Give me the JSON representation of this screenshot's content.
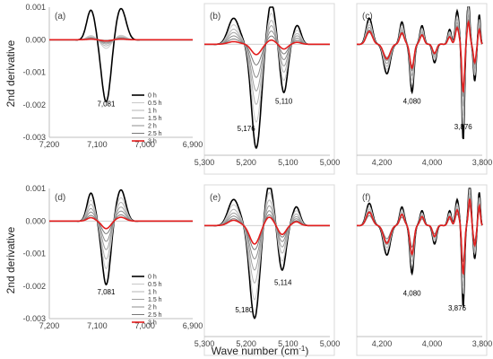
{
  "figure": {
    "ylabel": "2nd derivative",
    "xlabel_main": "Wave number (cm",
    "xlabel_sup": "-1",
    "xlabel_close": ")"
  },
  "legend_labels": [
    "0 h",
    "0.5 h",
    "1 h",
    "1.5 h",
    "2 h",
    "2.5 h",
    "3 h"
  ],
  "colors": {
    "h0": "#000000",
    "h05": "#c8c8c8",
    "h1": "#b4b4b4",
    "h15": "#a0a0a0",
    "h2": "#8c8c8c",
    "h25": "#787878",
    "h3": "#e21e1e",
    "frame": "#d9d9d9"
  },
  "chart_data": [
    {
      "panel": "(a)",
      "type": "line",
      "xlim": [
        7200,
        6900
      ],
      "ylim": [
        -0.003,
        0.001
      ],
      "xticks": [
        "7,200",
        "7,100",
        "7,000",
        "6,900"
      ],
      "yticks": [
        "0.001",
        "0.000",
        "-0.001",
        "-0.002",
        "-0.003"
      ],
      "annotations": [
        {
          "text": "7,081",
          "x": 7081,
          "y": -0.00205
        }
      ],
      "peaks": [
        {
          "x": 7113,
          "a": 0.0009,
          "w": 10
        },
        {
          "x": 7081,
          "a": -0.0019,
          "w": 11
        },
        {
          "x": 7050,
          "a": 0.00095,
          "w": 12
        }
      ],
      "series": [
        {
          "name": "0 h",
          "scale": 1.0
        },
        {
          "name": "0.5 h",
          "scale": 0.14
        },
        {
          "name": "1 h",
          "scale": 0.1
        },
        {
          "name": "1.5 h",
          "scale": 0.07
        },
        {
          "name": "2 h",
          "scale": 0.05
        },
        {
          "name": "2.5 h",
          "scale": 0.03
        },
        {
          "name": "3 h",
          "scale": 0.02
        }
      ]
    },
    {
      "panel": "(b)",
      "type": "line",
      "xlim": [
        5300,
        5000
      ],
      "ylim": [
        -0.003,
        0.001
      ],
      "xticks": [
        "5,300",
        "5,200",
        "5,100",
        "5,000"
      ],
      "annotations": [
        {
          "text": "5,176",
          "x": 5200,
          "y": -0.00235
        },
        {
          "text": "5,110",
          "x": 5110,
          "y": -0.0016
        }
      ],
      "peaks": [
        {
          "x": 5230,
          "a": 0.0007,
          "w": 15
        },
        {
          "x": 5176,
          "a": -0.0028,
          "w": 13
        },
        {
          "x": 5140,
          "a": 0.0011,
          "w": 11
        },
        {
          "x": 5110,
          "a": -0.0013,
          "w": 10
        },
        {
          "x": 5078,
          "a": 0.0005,
          "w": 10
        }
      ],
      "series": [
        {
          "name": "0 h",
          "scale": 1.0
        },
        {
          "name": "0.5 h",
          "scale": 0.75
        },
        {
          "name": "1 h",
          "scale": 0.58
        },
        {
          "name": "1.5 h",
          "scale": 0.45
        },
        {
          "name": "2 h",
          "scale": 0.32
        },
        {
          "name": "2.5 h",
          "scale": 0.2
        },
        {
          "name": "3 h",
          "scale": 0.1
        }
      ]
    },
    {
      "panel": "(c)",
      "type": "line",
      "xlim": [
        4300,
        3800
      ],
      "ylim": [
        -0.003,
        0.001
      ],
      "xticks": [
        "4,200",
        "4,000",
        "3,800"
      ],
      "annotations": [
        {
          "text": "4,080",
          "x": 4080,
          "y": -0.0016
        },
        {
          "text": "3,876",
          "x": 3876,
          "y": -0.0023
        }
      ],
      "peaks": [
        {
          "x": 4250,
          "a": 0.0007,
          "w": 14
        },
        {
          "x": 4180,
          "a": -0.0008,
          "w": 15
        },
        {
          "x": 4120,
          "a": 0.0006,
          "w": 10
        },
        {
          "x": 4080,
          "a": -0.0013,
          "w": 9
        },
        {
          "x": 4040,
          "a": 0.0005,
          "w": 9
        },
        {
          "x": 3990,
          "a": -0.0005,
          "w": 9
        },
        {
          "x": 3930,
          "a": 0.0004,
          "w": 8
        },
        {
          "x": 3900,
          "a": 0.0009,
          "w": 8
        },
        {
          "x": 3876,
          "a": -0.0026,
          "w": 6
        },
        {
          "x": 3855,
          "a": 0.0012,
          "w": 6
        },
        {
          "x": 3830,
          "a": -0.001,
          "w": 6
        },
        {
          "x": 3812,
          "a": 0.0008,
          "w": 5
        }
      ],
      "series": [
        {
          "name": "0 h",
          "scale": 1.0
        },
        {
          "name": "0.5 h",
          "scale": 0.85
        },
        {
          "name": "1 h",
          "scale": 0.75
        },
        {
          "name": "1.5 h",
          "scale": 0.65
        },
        {
          "name": "2 h",
          "scale": 0.55
        },
        {
          "name": "2.5 h",
          "scale": 0.45
        },
        {
          "name": "3 h",
          "scale": 0.5
        }
      ]
    },
    {
      "panel": "(d)",
      "type": "line",
      "xlim": [
        7200,
        6900
      ],
      "ylim": [
        -0.003,
        0.001
      ],
      "xticks": [
        "7,200",
        "7,100",
        "7,000",
        "6,900"
      ],
      "yticks": [
        "0.001",
        "0.000",
        "-0.001",
        "-0.002",
        "-0.003"
      ],
      "annotations": [
        {
          "text": "7,081",
          "x": 7081,
          "y": -0.00225
        }
      ],
      "peaks": [
        {
          "x": 7113,
          "a": 0.00085,
          "w": 9
        },
        {
          "x": 7081,
          "a": -0.00195,
          "w": 10
        },
        {
          "x": 7050,
          "a": 0.00095,
          "w": 11
        }
      ],
      "series": [
        {
          "name": "0 h",
          "scale": 1.0
        },
        {
          "name": "0.5 h",
          "scale": 0.75
        },
        {
          "name": "1 h",
          "scale": 0.6
        },
        {
          "name": "1.5 h",
          "scale": 0.45
        },
        {
          "name": "2 h",
          "scale": 0.32
        },
        {
          "name": "2.5 h",
          "scale": 0.2
        },
        {
          "name": "3 h",
          "scale": 0.12
        }
      ]
    },
    {
      "panel": "(e)",
      "type": "line",
      "xlim": [
        5300,
        5000
      ],
      "ylim": [
        -0.003,
        0.001
      ],
      "xticks": [
        "5,300",
        "5,200",
        "5,100",
        "5,000"
      ],
      "annotations": [
        {
          "text": "5,180",
          "x": 5205,
          "y": -0.00235
        },
        {
          "text": "5,114",
          "x": 5112,
          "y": -0.0016
        }
      ],
      "peaks": [
        {
          "x": 5230,
          "a": 0.0007,
          "w": 15
        },
        {
          "x": 5180,
          "a": -0.0025,
          "w": 13
        },
        {
          "x": 5145,
          "a": 0.0011,
          "w": 11
        },
        {
          "x": 5114,
          "a": -0.0012,
          "w": 10
        },
        {
          "x": 5080,
          "a": 0.0005,
          "w": 10
        }
      ],
      "series": [
        {
          "name": "0 h",
          "scale": 1.0
        },
        {
          "name": "0.5 h",
          "scale": 0.8
        },
        {
          "name": "1 h",
          "scale": 0.62
        },
        {
          "name": "1.5 h",
          "scale": 0.48
        },
        {
          "name": "2 h",
          "scale": 0.36
        },
        {
          "name": "2.5 h",
          "scale": 0.26
        },
        {
          "name": "3 h",
          "scale": 0.2
        }
      ]
    },
    {
      "panel": "(f)",
      "type": "line",
      "xlim": [
        4300,
        3800
      ],
      "ylim": [
        -0.003,
        0.001
      ],
      "xticks": [
        "4,200",
        "4,000",
        "3,800"
      ],
      "annotations": [
        {
          "text": "4,080",
          "x": 4080,
          "y": -0.0019
        },
        {
          "text": "3,876",
          "x": 3900,
          "y": -0.0023
        }
      ],
      "peaks": [
        {
          "x": 4250,
          "a": 0.0006,
          "w": 14
        },
        {
          "x": 4180,
          "a": -0.0008,
          "w": 15
        },
        {
          "x": 4120,
          "a": 0.0005,
          "w": 10
        },
        {
          "x": 4080,
          "a": -0.0013,
          "w": 9
        },
        {
          "x": 4040,
          "a": 0.0004,
          "w": 9
        },
        {
          "x": 3990,
          "a": -0.0005,
          "w": 9
        },
        {
          "x": 3930,
          "a": 0.0004,
          "w": 8
        },
        {
          "x": 3900,
          "a": 0.0007,
          "w": 8
        },
        {
          "x": 3876,
          "a": -0.0022,
          "w": 6
        },
        {
          "x": 3850,
          "a": 0.0012,
          "w": 6
        },
        {
          "x": 3830,
          "a": -0.0009,
          "w": 6
        },
        {
          "x": 3812,
          "a": 0.0009,
          "w": 5
        }
      ],
      "series": [
        {
          "name": "0 h",
          "scale": 1.0
        },
        {
          "name": "0.5 h",
          "scale": 0.85
        },
        {
          "name": "1 h",
          "scale": 0.75
        },
        {
          "name": "1.5 h",
          "scale": 0.65
        },
        {
          "name": "2 h",
          "scale": 0.55
        },
        {
          "name": "2.5 h",
          "scale": 0.45
        },
        {
          "name": "3 h",
          "scale": 0.6
        }
      ]
    }
  ]
}
